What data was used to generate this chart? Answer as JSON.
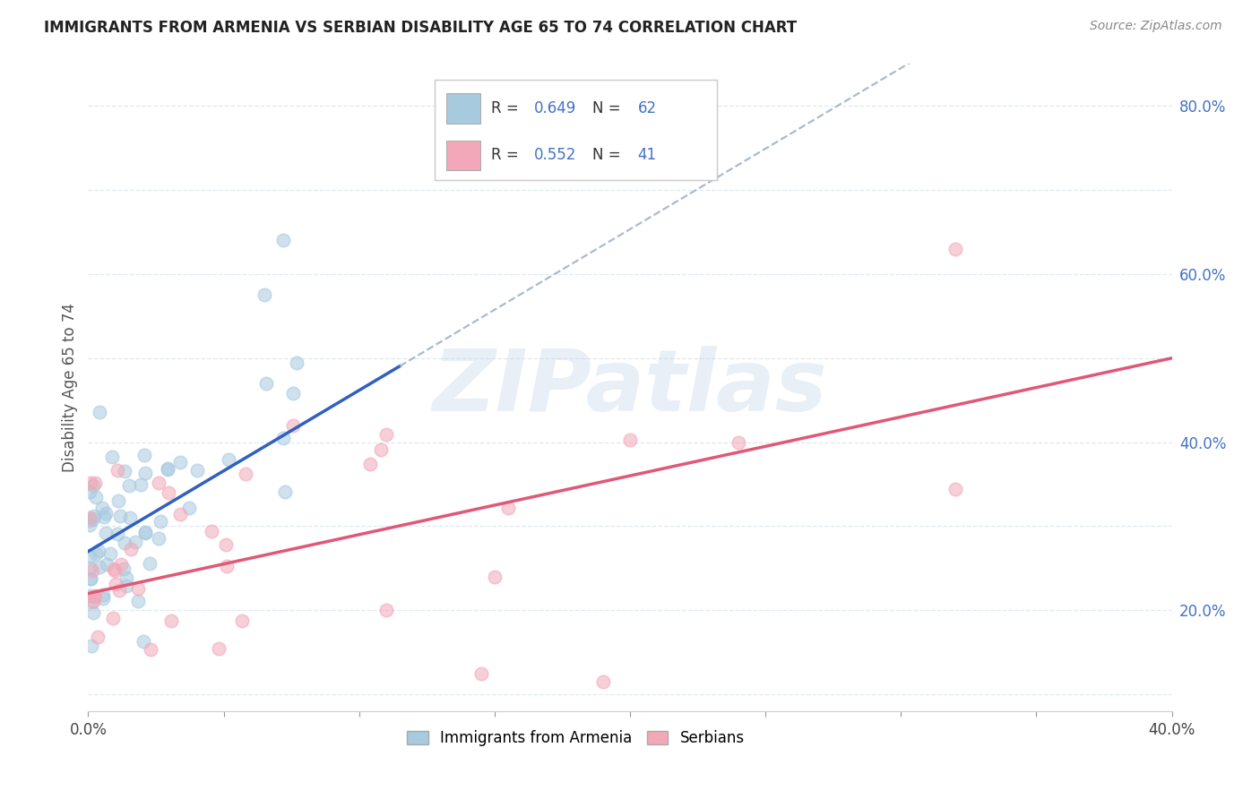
{
  "title": "IMMIGRANTS FROM ARMENIA VS SERBIAN DISABILITY AGE 65 TO 74 CORRELATION CHART",
  "source": "Source: ZipAtlas.com",
  "ylabel": "Disability Age 65 to 74",
  "xlim": [
    0.0,
    0.4
  ],
  "ylim": [
    0.08,
    0.85
  ],
  "xticks": [
    0.0,
    0.05,
    0.1,
    0.15,
    0.2,
    0.25,
    0.3,
    0.35,
    0.4
  ],
  "xticklabels": [
    "0.0%",
    "",
    "",
    "",
    "",
    "",
    "",
    "",
    "40.0%"
  ],
  "ytick_vals": [
    0.1,
    0.2,
    0.3,
    0.4,
    0.5,
    0.6,
    0.7,
    0.8
  ],
  "ytick_labels": [
    "",
    "20.0%",
    "",
    "40.0%",
    "",
    "60.0%",
    "",
    "80.0%"
  ],
  "blue_fill": "#A8CADF",
  "pink_fill": "#F2A8B8",
  "blue_line": "#3060C0",
  "pink_line": "#E05878",
  "dash_color": "#AABBCC",
  "grid_color": "#E0E8F0",
  "watermark_color": "#C8D8EA",
  "r_armenia": 0.649,
  "n_armenia": 62,
  "r_serbia": 0.552,
  "n_serbia": 41,
  "legend_blue_r": "0.649",
  "legend_blue_n": "62",
  "legend_pink_r": "0.552",
  "legend_pink_n": "41",
  "bottom_legend_labels": [
    "Immigrants from Armenia",
    "Serbians"
  ]
}
